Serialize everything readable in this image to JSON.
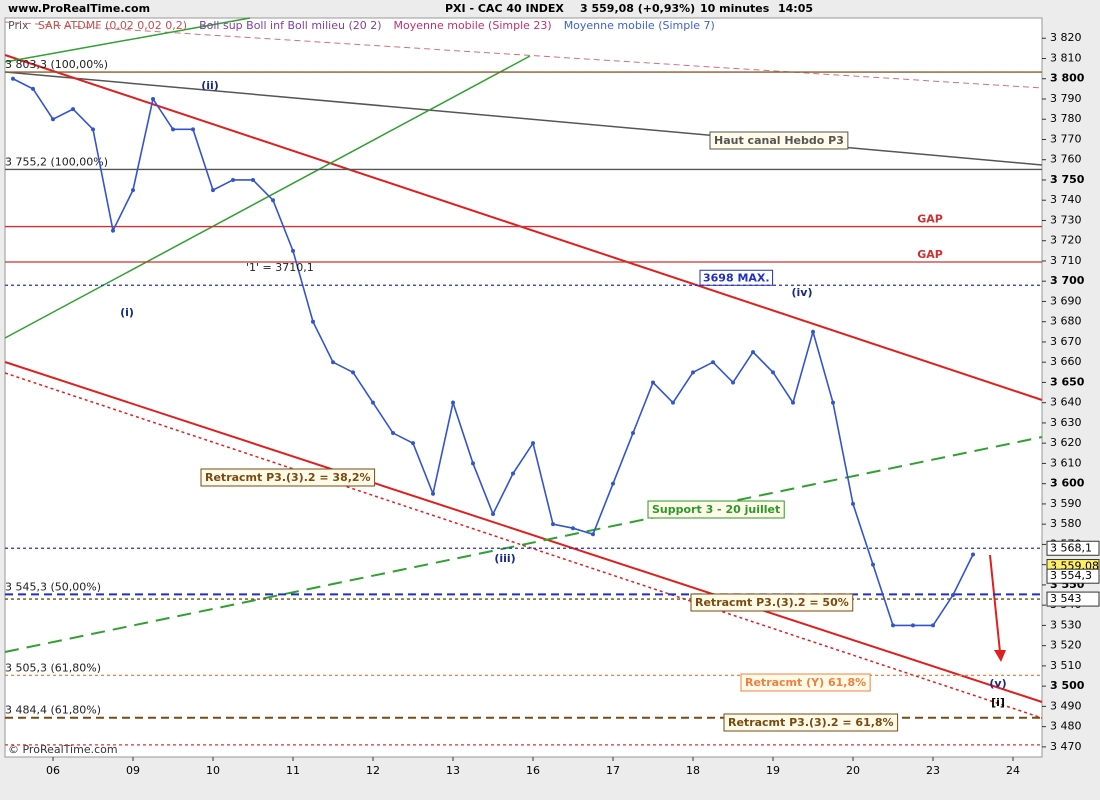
{
  "chart_data": {
    "type": "line",
    "site": "www.ProRealTime.com",
    "title": "PXI - CAC 40 INDEX",
    "price": "3 559,08 (+0,93%)",
    "interval": "10 minutes",
    "time": "14:05",
    "footer": "© ProRealTime.com",
    "indicators": [
      {
        "name": "SAR ATDMF (0,02 0,02 0,2)",
        "color": "#c0504d"
      },
      {
        "name": "Boll sup Boll inf Boll milieu (20 2)",
        "color": "#8040a0"
      },
      {
        "name": "Moyenne mobile (Simple 23)",
        "color": "#c03070"
      },
      {
        "name": "Moyenne mobile (Simple 7)",
        "color": "#4060d0"
      }
    ],
    "categories": [
      null,
      null,
      "06",
      null,
      null,
      null,
      "09",
      null,
      null,
      null,
      "10",
      null,
      null,
      null,
      "11",
      null,
      null,
      null,
      "12",
      null,
      null,
      null,
      "13",
      null,
      null,
      null,
      "16",
      null,
      null,
      null,
      "17",
      null,
      null,
      null,
      "18",
      null,
      null,
      null,
      "19",
      null,
      null,
      null,
      "20",
      null,
      null,
      null,
      "23",
      null,
      null,
      null,
      "24"
    ],
    "series": [
      {
        "name": "Prix",
        "color": "#3355cc",
        "values": [
          3800,
          3795,
          3780,
          3785,
          3775,
          3725,
          3745,
          3790,
          3775,
          3775,
          3745,
          3750,
          3750,
          3740,
          3715,
          3680,
          3660,
          3655,
          3640,
          3625,
          3620,
          3595,
          3640,
          3610,
          3585,
          3605,
          3620,
          3580,
          3578,
          3575,
          3600,
          3625,
          3650,
          3640,
          3655,
          3660,
          3650,
          3665,
          3655,
          3640,
          3675,
          3640,
          3590,
          3560,
          3530,
          3530,
          3530,
          3545,
          3565,
          null,
          null
        ]
      }
    ],
    "ylim": [
      3465,
      3830
    ],
    "yticks": [
      {
        "value": 3470,
        "label": "3 470"
      },
      {
        "value": 3480,
        "label": "3 480"
      },
      {
        "value": 3490,
        "label": "3 490"
      },
      {
        "value": 3500,
        "label": "3 500"
      },
      {
        "value": 3510,
        "label": "3 510"
      },
      {
        "value": 3520,
        "label": "3 520"
      },
      {
        "value": 3530,
        "label": "3 530"
      },
      {
        "value": 3540,
        "label": "3 540"
      },
      {
        "value": 3550,
        "label": "3 550"
      },
      {
        "value": 3560,
        "label": "3 560"
      },
      {
        "value": 3570,
        "label": "3 570"
      },
      {
        "value": 3580,
        "label": "3 580"
      },
      {
        "value": 3590,
        "label": "3 590"
      },
      {
        "value": 3600,
        "label": "3 600"
      },
      {
        "value": 3610,
        "label": "3 610"
      },
      {
        "value": 3620,
        "label": "3 620"
      },
      {
        "value": 3630,
        "label": "3 630"
      },
      {
        "value": 3640,
        "label": "3 640"
      },
      {
        "value": 3650,
        "label": "3 650"
      },
      {
        "value": 3660,
        "label": "3 660"
      },
      {
        "value": 3670,
        "label": "3 670"
      },
      {
        "value": 3680,
        "label": "3 680"
      },
      {
        "value": 3690,
        "label": "3 690"
      },
      {
        "value": 3700,
        "label": "3 700"
      },
      {
        "value": 3710,
        "label": "3 710"
      },
      {
        "value": 3720,
        "label": "3 720"
      },
      {
        "value": 3730,
        "label": "3 730"
      },
      {
        "value": 3740,
        "label": "3 740"
      },
      {
        "value": 3750,
        "label": "3 750"
      },
      {
        "value": 3760,
        "label": "3 760"
      },
      {
        "value": 3770,
        "label": "3 770"
      },
      {
        "value": 3780,
        "label": "3 780"
      },
      {
        "value": 3790,
        "label": "3 790"
      },
      {
        "value": 3800,
        "label": "3 800"
      },
      {
        "value": 3810,
        "label": "3 810"
      },
      {
        "value": 3820,
        "label": "3 820"
      }
    ],
    "levels": [
      {
        "value": 3803.3,
        "label": "3 803,3 (100,00%)",
        "color": "#8b5a2b",
        "dash": "solid"
      },
      {
        "value": 3755.2,
        "label": "3 755,2 (100,00%)",
        "color": "#555555",
        "dash": "solid"
      },
      {
        "value": 3727,
        "label": "GAP",
        "color": "#d03030",
        "dash": "solid"
      },
      {
        "value": 3709.5,
        "label": "GAP",
        "color": "#d03030",
        "dash": "solid"
      },
      {
        "value": 3698,
        "label": "3698 MAX.",
        "color": "#2030c0",
        "dash": "dotted"
      },
      {
        "value": 3568.1,
        "color": "#2030c0",
        "dash": "dotted"
      },
      {
        "value": 3545.3,
        "label": "3 545,3 (50,00%)",
        "color": "#2030c0",
        "dash": "dashed"
      },
      {
        "value": 3543,
        "color": "#7a4a10",
        "dash": "dotted"
      },
      {
        "value": 3505.3,
        "label": "3 505,3 (61,80%)",
        "color": "#f08040",
        "dash": "dotted"
      },
      {
        "value": 3484.4,
        "label": "3 484,4 (61,80%)",
        "color": "#7a4a10",
        "dash": "dashed"
      },
      {
        "value": 3471,
        "color": "#e03030",
        "dash": "dotted"
      }
    ],
    "price_tags": [
      {
        "value": 3568.1,
        "label": "3 568,1",
        "color": "#ffffff"
      },
      {
        "value": 3559.08,
        "label": "3 559,08",
        "color": "#ffee66"
      },
      {
        "value": 3554.3,
        "label": "3 554,3",
        "color": "#ffffff"
      },
      {
        "value": 3543,
        "label": "3 543",
        "color": "#ffffff"
      }
    ],
    "annotations": [
      "Haut canal Hebdo P3",
      "Retracmt P3.(3).2 = 38,2%",
      "Support 3 - 20 juillet",
      "Retracmt P3.(3).2 = 50%",
      "Retracmt (Y) 61,8%",
      "Retracmt P3.(3).2 = 61,8%",
      "'1' = 3710,1",
      "(i)",
      "(ii)",
      "(iii)",
      "(iv)",
      "(v)",
      "[i]"
    ]
  }
}
